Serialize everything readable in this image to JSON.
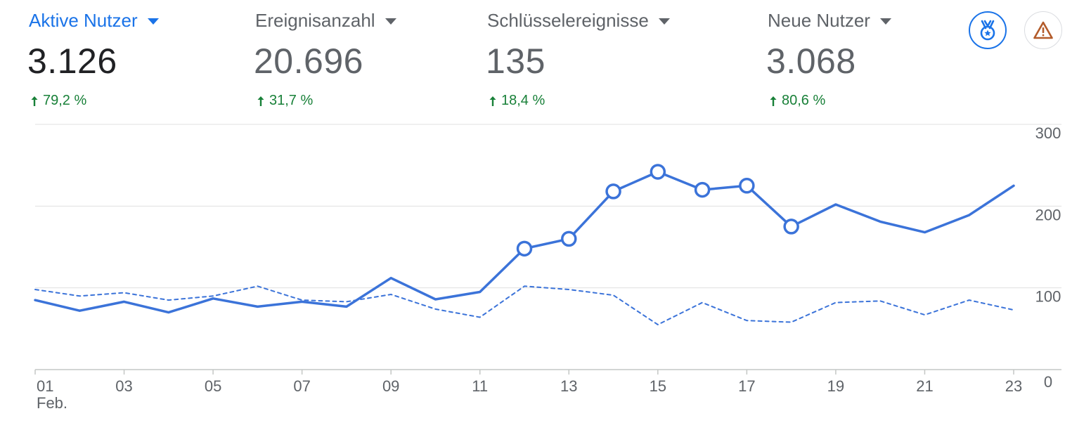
{
  "metrics": [
    {
      "label": "Aktive Nutzer",
      "value": "3.126",
      "change": "79,2 %",
      "active": true
    },
    {
      "label": "Ereignisanzahl",
      "value": "20.696",
      "change": "31,7 %",
      "active": false
    },
    {
      "label": "Schlüsselereignisse",
      "value": "135",
      "change": "18,4 %",
      "active": false
    },
    {
      "label": "Neue Nutzer",
      "value": "3.068",
      "change": "80,6 %",
      "active": false
    }
  ],
  "icons": {
    "insights": "insights-medal-icon",
    "warning": "warning-triangle-icon"
  },
  "colors": {
    "accent": "#1a73e8",
    "line": "#3b73d9",
    "positive": "#188038",
    "warning": "#b35b2a",
    "grid": "#e0e0e0",
    "text_secondary": "#5f6368"
  },
  "chart_data": {
    "type": "line",
    "x": [
      "01",
      "02",
      "03",
      "04",
      "05",
      "06",
      "07",
      "08",
      "09",
      "10",
      "11",
      "12",
      "13",
      "14",
      "15",
      "16",
      "17",
      "18",
      "19",
      "20",
      "21",
      "22",
      "23"
    ],
    "x_tick_labels": [
      "01",
      "03",
      "05",
      "07",
      "09",
      "11",
      "13",
      "15",
      "17",
      "19",
      "21",
      "23"
    ],
    "x_sublabel": "Feb.",
    "ylim": [
      0,
      300
    ],
    "y_ticks": [
      "0",
      "100",
      "200",
      "300"
    ],
    "y_axis_position": "right",
    "grid": true,
    "series": [
      {
        "style": "solid",
        "values": [
          85,
          72,
          83,
          70,
          87,
          77,
          83,
          77,
          112,
          86,
          95,
          148,
          160,
          218,
          242,
          220,
          225,
          175,
          202,
          181,
          168,
          189,
          225
        ],
        "markers": [
          12,
          13,
          14,
          15,
          16,
          17,
          18
        ]
      },
      {
        "style": "dashed",
        "values": [
          98,
          90,
          94,
          85,
          90,
          102,
          85,
          83,
          92,
          74,
          64,
          102,
          98,
          91,
          55,
          82,
          60,
          58,
          82,
          84,
          67,
          85,
          73
        ]
      }
    ]
  }
}
